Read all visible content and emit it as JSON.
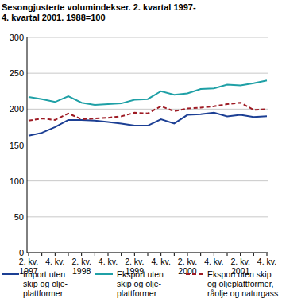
{
  "chart_data": {
    "type": "line",
    "title": "Sesongjusterte volumindekser. 2. kvartal 1997-\n4. kvartal 2001. 1988=100",
    "categories": [
      "2. kv. 1997",
      null,
      "4. kv.",
      null,
      "2. kv. 1998",
      null,
      "4. kv.",
      null,
      "2. kv. 1999",
      null,
      "4. kv.",
      null,
      "2. kv. 2000",
      null,
      "4. kv.",
      null,
      "2. kv. 2001",
      null,
      "4. kv."
    ],
    "series": [
      {
        "name": "Import uten\nskip og olje-\nplattformer",
        "color": "#1c3f94",
        "line_style": "solid",
        "values": [
          163,
          167,
          175,
          185,
          185,
          184,
          182,
          180,
          177,
          177,
          186,
          180,
          192,
          193,
          195,
          190,
          192,
          189,
          190
        ]
      },
      {
        "name": "Eksport uten\nskip og olje-\nplattformer",
        "color": "#1fa0a6",
        "line_style": "solid",
        "values": [
          217,
          214,
          210,
          218,
          209,
          206,
          207,
          208,
          213,
          214,
          225,
          220,
          222,
          228,
          229,
          234,
          233,
          236,
          240
        ]
      },
      {
        "name": "Eksport uten skip\nog oljeplattformer,\nråolje og naturgass",
        "color": "#9e1b24",
        "line_style": "dashed",
        "values": [
          184,
          187,
          185,
          194,
          186,
          187,
          188,
          190,
          195,
          194,
          204,
          197,
          201,
          202,
          204,
          207,
          209,
          199,
          200
        ]
      }
    ],
    "ylim": [
      0,
      300
    ],
    "yticks": [
      0,
      50,
      100,
      150,
      200,
      250,
      300
    ],
    "grid": true,
    "legend": "bottom"
  }
}
